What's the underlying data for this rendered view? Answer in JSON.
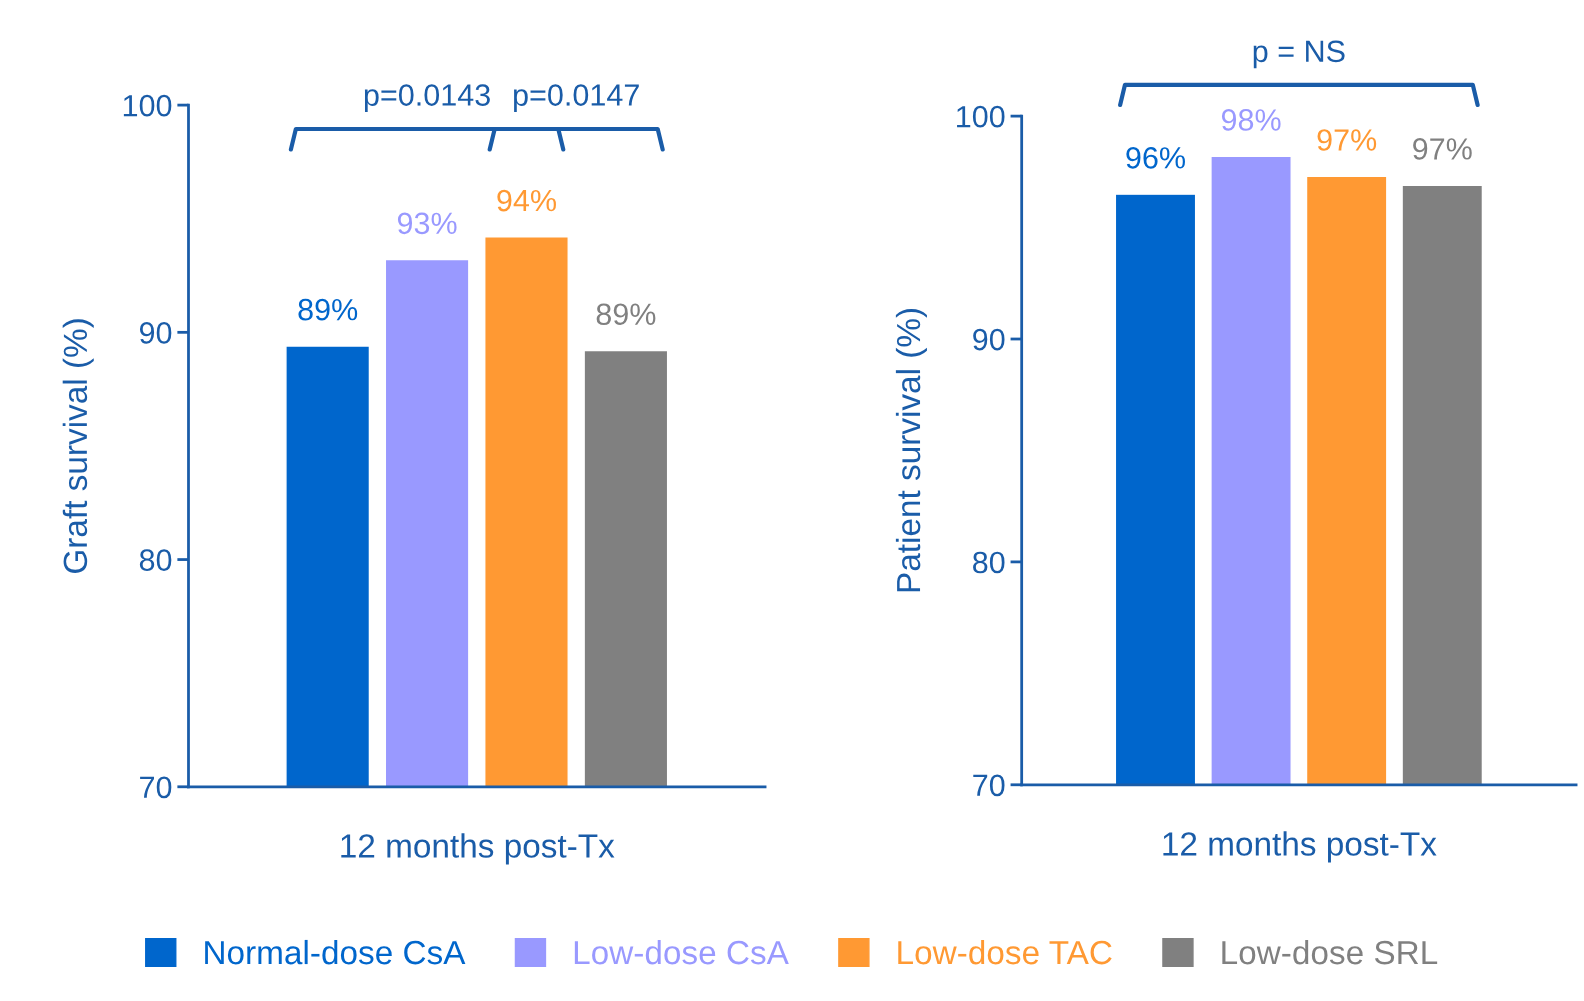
{
  "chart_data": [
    {
      "type": "bar",
      "categories": [
        null,
        null,
        null,
        null
      ],
      "xlabel": "12 months post-Tx",
      "ylabel": "Graft survival (%)",
      "ylim": [
        70,
        100
      ],
      "yticks": [
        70,
        80,
        90,
        100
      ],
      "grid": false,
      "legend": "bottom",
      "series": [
        {
          "name": "Normal-dose CsA",
          "color": "#0066cc",
          "values": [
            89.4,
            null,
            null,
            null
          ],
          "value_labels": [
            "89%",
            null,
            null,
            null
          ]
        },
        {
          "name": "Low-dose CsA",
          "color": "#9999ff",
          "values": [
            null,
            93.2,
            null,
            null
          ],
          "value_labels": [
            null,
            "93%",
            null,
            null
          ]
        },
        {
          "name": "Low-dose TAC",
          "color": "#ff9933",
          "values": [
            null,
            null,
            94.2,
            null
          ],
          "value_labels": [
            null,
            null,
            "94%",
            null
          ]
        },
        {
          "name": "Low-dose SRL",
          "color": "#808080",
          "values": [
            null,
            null,
            null,
            89.2
          ],
          "value_labels": [
            null,
            null,
            null,
            "89%"
          ]
        }
      ],
      "annotations": [
        "p=0.0143",
        "p=0.0147"
      ]
    },
    {
      "type": "bar",
      "categories": [
        null,
        null,
        null,
        null
      ],
      "xlabel": "12 months post-Tx",
      "ylabel": "Patient survival (%)",
      "ylim": [
        70,
        100
      ],
      "yticks": [
        70,
        80,
        90,
        100
      ],
      "grid": false,
      "series": [
        {
          "color": "#0066cc",
          "values": [
            96.5,
            null,
            null,
            null
          ],
          "value_labels": [
            "96%",
            null,
            null,
            null
          ]
        },
        {
          "color": "#9999ff",
          "values": [
            null,
            98.2,
            null,
            null
          ],
          "value_labels": [
            null,
            "98%",
            null,
            null
          ]
        },
        {
          "color": "#ff9933",
          "values": [
            null,
            null,
            97.3,
            null
          ],
          "value_labels": [
            null,
            null,
            "97%",
            null
          ]
        },
        {
          "color": "#808080",
          "values": [
            null,
            null,
            null,
            96.9
          ],
          "value_labels": [
            null,
            null,
            null,
            "97%"
          ]
        }
      ],
      "annotations": [
        "p = NS"
      ]
    }
  ]
}
